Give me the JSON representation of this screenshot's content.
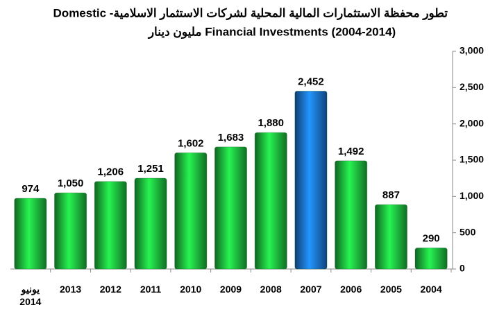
{
  "chart_data": {
    "type": "bar",
    "title": "Domestic  -تطور محفظة الاستثمارات المالية المحلية لشركات الاستثمار الاسلامية",
    "subtitle": "مليون دينار Financial Investments (2004-2014)",
    "categories": [
      "يونيو\n2014",
      "2013",
      "2012",
      "2011",
      "2010",
      "2009",
      "2008",
      "2007",
      "2006",
      "2005",
      "2004"
    ],
    "values": [
      974,
      1050,
      1206,
      1251,
      1602,
      1683,
      1880,
      2452,
      1492,
      887,
      290
    ],
    "value_labels": [
      "974",
      "1,050",
      "1,206",
      "1,251",
      "1,602",
      "1,683",
      "1,880",
      "2,452",
      "1,492",
      "887",
      "290"
    ],
    "colors": [
      "#1db53c",
      "#1db53c",
      "#1db53c",
      "#1db53c",
      "#1db53c",
      "#1db53c",
      "#1db53c",
      "#1a6fd0",
      "#1db53c",
      "#1db53c",
      "#1db53c"
    ],
    "ylim": [
      0,
      3000
    ],
    "yticks": [
      0,
      {
        "value": 500,
        "label": "500"
      },
      {
        "value": 1000,
        "label": "1,000"
      },
      {
        "value": 1500,
        "label": "1,500"
      },
      {
        "value": 2000,
        "label": "2,000"
      },
      {
        "value": 2500,
        "label": "2,500"
      },
      {
        "value": 3000,
        "label": "3,000"
      }
    ],
    "axis_side": "right"
  }
}
